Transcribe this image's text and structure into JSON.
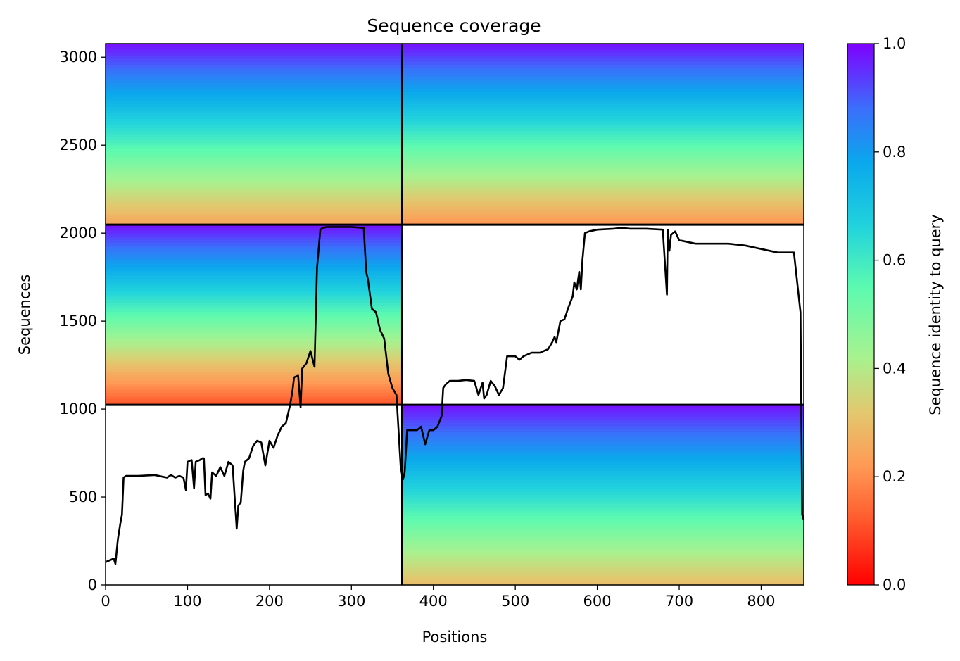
{
  "chart_data": {
    "type": "heatmap",
    "title": "Sequence coverage",
    "xlabel": "Positions",
    "ylabel": "Sequences",
    "xlim": [
      0,
      852
    ],
    "ylim": [
      0,
      3077
    ],
    "x_ticks": [
      "0",
      "100",
      "200",
      "300",
      "400",
      "500",
      "600",
      "700",
      "800"
    ],
    "y_ticks": [
      "0",
      "500",
      "1000",
      "1500",
      "2000",
      "2500",
      "3000"
    ],
    "colorbar": {
      "label": "Sequence identity to query",
      "range": [
        0.0,
        1.0
      ],
      "ticks": [
        "0.0",
        "0.2",
        "0.4",
        "0.6",
        "0.8",
        "1.0"
      ],
      "colormap": "rainbow_r"
    },
    "domain_boundaries": {
      "x": [
        362
      ],
      "y": [
        1024,
        2048
      ]
    },
    "coverage_blocks": [
      {
        "x_range": [
          0,
          362
        ],
        "y_range": [
          2048,
          3077
        ],
        "identity_top": 0.98,
        "identity_bottom": 0.25
      },
      {
        "x_range": [
          362,
          852
        ],
        "y_range": [
          2048,
          3077
        ],
        "identity_top": 0.98,
        "identity_bottom": 0.22
      },
      {
        "x_range": [
          0,
          362
        ],
        "y_range": [
          1024,
          2048
        ],
        "identity_top": 0.98,
        "identity_bottom": 0.12
      },
      {
        "x_range": [
          362,
          852
        ],
        "y_range": [
          0,
          1024
        ],
        "identity_top": 0.98,
        "identity_bottom": 0.3
      }
    ],
    "coverage_line": {
      "x": [
        0,
        5,
        10,
        12,
        15,
        18,
        20,
        22,
        25,
        40,
        60,
        70,
        75,
        78,
        80,
        85,
        90,
        95,
        98,
        100,
        105,
        108,
        110,
        115,
        118,
        120,
        122,
        125,
        128,
        130,
        135,
        140,
        145,
        150,
        155,
        160,
        162,
        165,
        168,
        170,
        175,
        180,
        185,
        190,
        195,
        200,
        205,
        210,
        215,
        220,
        225,
        228,
        230,
        235,
        238,
        240,
        245,
        250,
        255,
        258,
        262,
        265,
        270,
        280,
        300,
        315,
        318,
        320,
        325,
        330,
        335,
        340,
        345,
        350,
        355,
        360,
        362,
        363,
        365,
        368,
        370,
        375,
        380,
        385,
        390,
        395,
        400,
        405,
        410,
        412,
        415,
        420,
        430,
        440,
        450,
        455,
        460,
        462,
        465,
        470,
        475,
        480,
        485,
        490,
        500,
        505,
        510,
        520,
        530,
        540,
        545,
        548,
        550,
        555,
        560,
        565,
        570,
        572,
        575,
        578,
        580,
        582,
        585,
        590,
        600,
        620,
        630,
        640,
        660,
        680,
        685,
        686,
        688,
        690,
        695,
        700,
        710,
        720,
        740,
        760,
        780,
        800,
        820,
        840,
        848,
        850,
        852
      ],
      "y": [
        130,
        140,
        150,
        120,
        260,
        350,
        400,
        610,
        620,
        620,
        625,
        615,
        610,
        620,
        625,
        610,
        620,
        610,
        540,
        700,
        710,
        550,
        700,
        710,
        720,
        720,
        510,
        520,
        490,
        640,
        620,
        670,
        620,
        700,
        680,
        320,
        450,
        470,
        650,
        700,
        720,
        790,
        820,
        810,
        680,
        820,
        780,
        850,
        900,
        920,
        1020,
        1100,
        1180,
        1190,
        1010,
        1230,
        1260,
        1330,
        1240,
        1800,
        2020,
        2030,
        2035,
        2035,
        2035,
        2030,
        1780,
        1740,
        1570,
        1550,
        1450,
        1400,
        1200,
        1120,
        1080,
        680,
        620,
        600,
        640,
        880,
        880,
        880,
        880,
        900,
        800,
        880,
        880,
        900,
        960,
        1120,
        1140,
        1160,
        1160,
        1165,
        1160,
        1080,
        1150,
        1060,
        1080,
        1160,
        1130,
        1080,
        1120,
        1300,
        1300,
        1280,
        1300,
        1320,
        1320,
        1340,
        1380,
        1410,
        1380,
        1500,
        1510,
        1580,
        1640,
        1720,
        1680,
        1780,
        1680,
        1850,
        2000,
        2010,
        2020,
        2025,
        2030,
        2025,
        2025,
        2020,
        1650,
        2020,
        1900,
        1990,
        2010,
        1960,
        1950,
        1940,
        1940,
        1940,
        1930,
        1910,
        1890,
        1890,
        1550,
        400,
        370
      ]
    }
  }
}
